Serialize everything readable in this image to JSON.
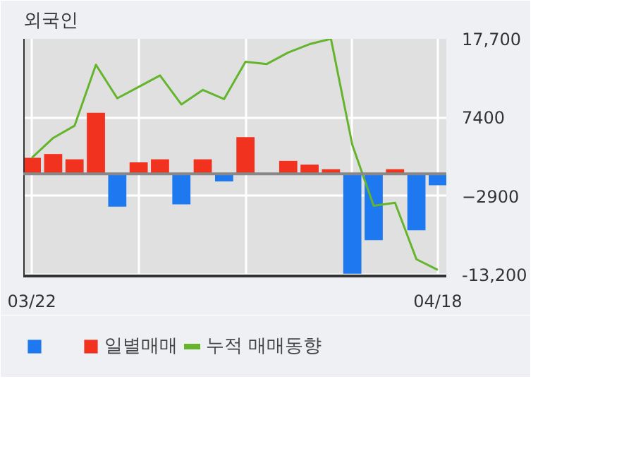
{
  "chart_data": {
    "type": "bar",
    "title": "외국인",
    "categories": [
      "03/22",
      null,
      null,
      null,
      null,
      null,
      null,
      null,
      null,
      null,
      null,
      null,
      null,
      null,
      null,
      null,
      null,
      null,
      null,
      "04/18"
    ],
    "series": [
      {
        "name": "일별매매",
        "colors": [
          "#f0321e",
          "#f0321e",
          "#f0321e",
          "#f0321e",
          "#1e78f0",
          "#f0321e",
          "#f0321e",
          "#1e78f0",
          "#f0321e",
          "#1e78f0",
          "#f0321e",
          "#f0321e",
          "#f0321e",
          "#f0321e",
          "#f0321e",
          "#1e78f0",
          "#1e78f0",
          "#f0321e",
          "#1e78f0",
          "#1e78f0"
        ],
        "values": [
          2100,
          2600,
          1900,
          8000,
          -4300,
          1500,
          1900,
          -4000,
          1900,
          -1000,
          4800,
          0,
          1700,
          1200,
          600,
          -13100,
          -8700,
          600,
          -7400,
          -1500
        ]
      },
      {
        "name": "누적 매매동향",
        "type": "line",
        "color": "#64b42d",
        "values": [
          2100,
          4700,
          6300,
          14300,
          9900,
          11400,
          12900,
          9100,
          11000,
          9800,
          14700,
          14400,
          15900,
          17000,
          17700,
          3800,
          -4200,
          -3800,
          -11200,
          -12600
        ]
      }
    ],
    "ylim": [
      -13400,
      17700
    ],
    "yticks": [
      {
        "value": 17700,
        "label": "17,700"
      },
      7400,
      -2900,
      {
        "value": -13200,
        "label": "-13,200"
      }
    ],
    "grid": true,
    "legend": "bottom"
  }
}
